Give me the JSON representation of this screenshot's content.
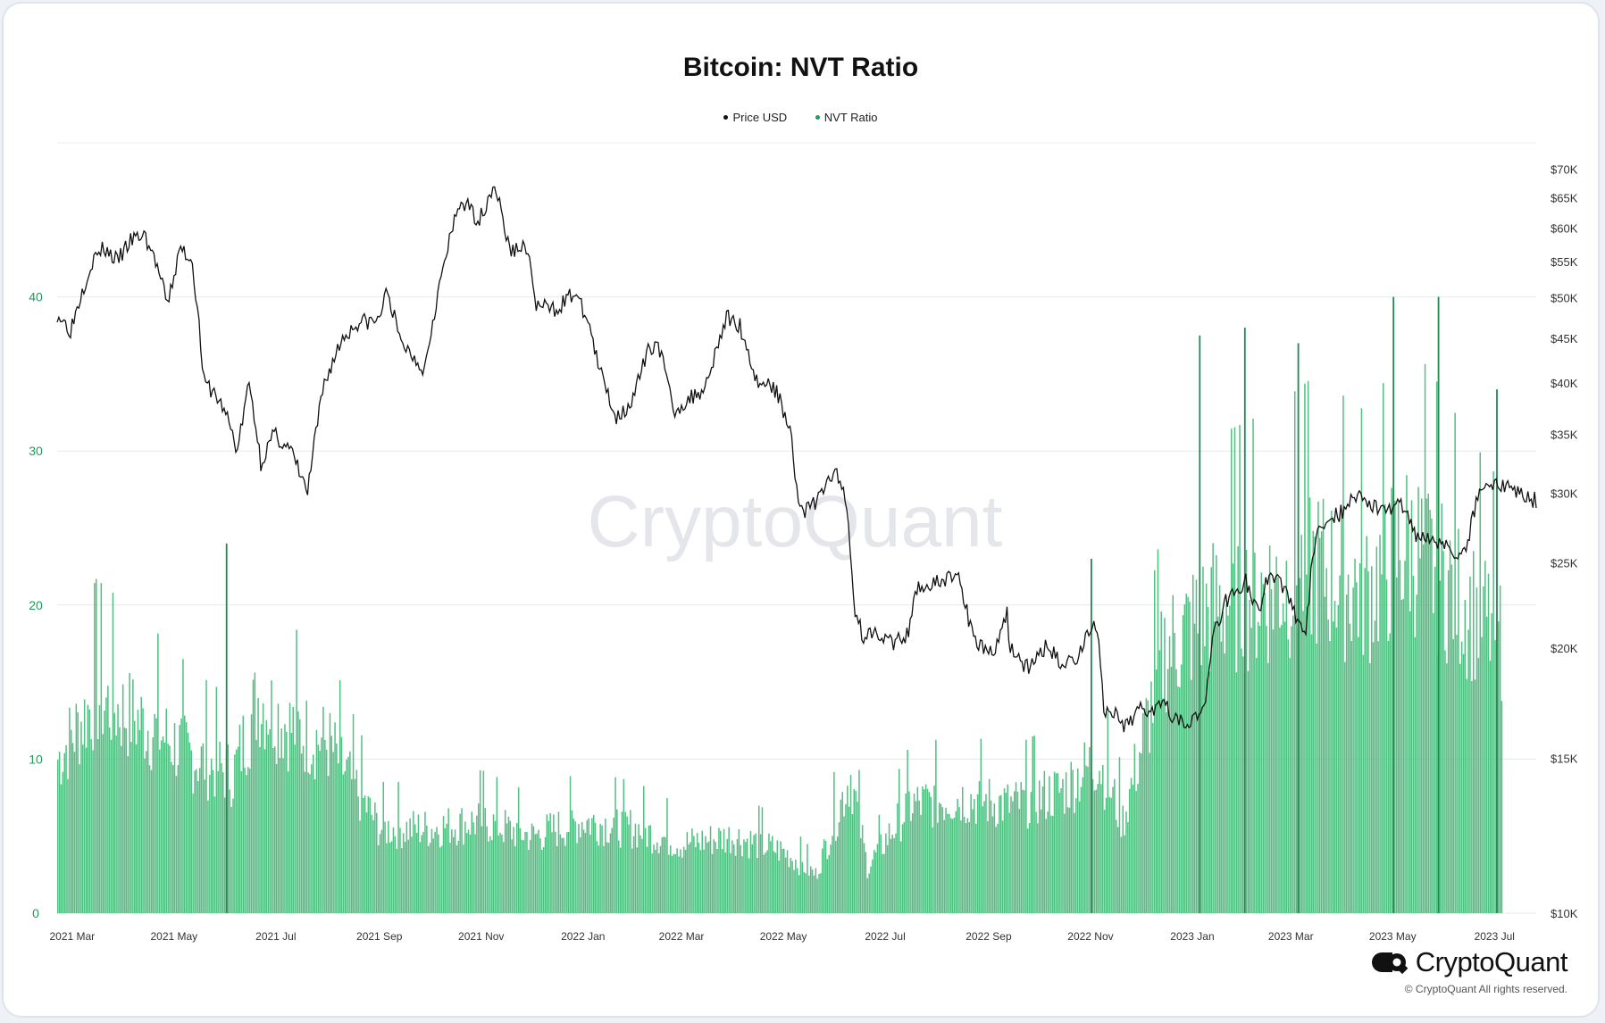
{
  "title": "Bitcoin: NVT Ratio",
  "legend": [
    {
      "label": "Price USD",
      "color": "#111111"
    },
    {
      "label": "NVT Ratio",
      "color": "#1f9d5c"
    }
  ],
  "watermark": "CryptoQuant",
  "brand": {
    "name": "CryptoQuant",
    "copyright": "© CryptoQuant All rights reserved."
  },
  "colors": {
    "bar": "#3db873",
    "bar_edge": "#1e8a4f",
    "line": "#111111",
    "left_axis": "#1f9d5c",
    "grid": "#e6e9ee"
  },
  "chart_data": {
    "type": "bar+line",
    "title": "Bitcoin: NVT Ratio",
    "x_ticks": [
      "2021 Mar",
      "2021 May",
      "2021 Jul",
      "2021 Sep",
      "2021 Nov",
      "2022 Jan",
      "2022 Mar",
      "2022 May",
      "2022 Jul",
      "2022 Sep",
      "2022 Nov",
      "2023 Jan",
      "2023 Mar",
      "2023 May",
      "2023 Jul"
    ],
    "left_axis": {
      "label": "",
      "ticks": [
        "0",
        "10",
        "20",
        "30",
        "40"
      ],
      "ylim": [
        0,
        50
      ]
    },
    "right_axis": {
      "label": "",
      "scale": "log",
      "ticks": [
        "$10K",
        "$15K",
        "$20K",
        "$25K",
        "$30K",
        "$35K",
        "$40K",
        "$45K",
        "$50K",
        "$55K",
        "$60K",
        "$65K",
        "$70K"
      ],
      "ylim": [
        10000,
        75000
      ]
    },
    "series": [
      {
        "name": "Price USD",
        "type": "line",
        "axis": "right",
        "x": [
          "2021-02-20",
          "2021-02-28",
          "2021-03-07",
          "2021-03-13",
          "2021-03-20",
          "2021-03-28",
          "2021-04-05",
          "2021-04-13",
          "2021-04-20",
          "2021-04-27",
          "2021-05-05",
          "2021-05-12",
          "2021-05-19",
          "2021-05-25",
          "2021-06-01",
          "2021-06-08",
          "2021-06-15",
          "2021-06-22",
          "2021-06-30",
          "2021-07-10",
          "2021-07-20",
          "2021-07-30",
          "2021-08-10",
          "2021-08-20",
          "2021-08-31",
          "2021-09-06",
          "2021-09-13",
          "2021-09-21",
          "2021-09-28",
          "2021-10-05",
          "2021-10-15",
          "2021-10-20",
          "2021-10-31",
          "2021-11-09",
          "2021-11-18",
          "2021-11-28",
          "2021-12-04",
          "2021-12-15",
          "2021-12-27",
          "2022-01-05",
          "2022-01-10",
          "2022-01-21",
          "2022-01-31",
          "2022-02-10",
          "2022-02-15",
          "2022-02-24",
          "2022-03-07",
          "2022-03-15",
          "2022-03-28",
          "2022-04-05",
          "2022-04-15",
          "2022-04-25",
          "2022-05-05",
          "2022-05-09",
          "2022-05-12",
          "2022-05-22",
          "2022-05-31",
          "2022-06-07",
          "2022-06-13",
          "2022-06-18",
          "2022-06-25",
          "2022-07-05",
          "2022-07-15",
          "2022-07-20",
          "2022-07-30",
          "2022-08-14",
          "2022-08-20",
          "2022-08-26",
          "2022-09-05",
          "2022-09-12",
          "2022-09-13",
          "2022-09-25",
          "2022-10-05",
          "2022-10-15",
          "2022-10-25",
          "2022-10-29",
          "2022-11-05",
          "2022-11-08",
          "2022-11-09",
          "2022-11-15",
          "2022-11-21",
          "2022-11-30",
          "2022-12-10",
          "2022-12-15",
          "2022-12-20",
          "2022-12-31",
          "2023-01-08",
          "2023-01-14",
          "2023-01-21",
          "2023-02-02",
          "2023-02-10",
          "2023-02-16",
          "2023-02-25",
          "2023-03-10",
          "2023-03-13",
          "2023-03-18",
          "2023-03-25",
          "2023-04-01",
          "2023-04-11",
          "2023-04-19",
          "2023-04-26",
          "2023-05-06",
          "2023-05-15",
          "2023-05-25",
          "2023-06-06",
          "2023-06-10",
          "2023-06-15",
          "2023-06-21",
          "2023-06-25",
          "2023-07-05",
          "2023-07-13",
          "2023-07-20",
          "2023-07-26"
        ],
        "values": [
          48000,
          46000,
          51000,
          55000,
          57000,
          55000,
          58000,
          59000,
          55000,
          49000,
          57000,
          55000,
          40000,
          39000,
          37000,
          33500,
          40000,
          32500,
          35000,
          33500,
          30000,
          40000,
          45000,
          47000,
          47000,
          51000,
          44800,
          43000,
          41500,
          49500,
          60000,
          64500,
          61300,
          67500,
          56500,
          57300,
          49000,
          48500,
          50700,
          46500,
          41800,
          36500,
          38400,
          44000,
          44500,
          37200,
          38500,
          39600,
          47500,
          46500,
          40200,
          39700,
          35800,
          30500,
          28500,
          29500,
          31800,
          30000,
          22100,
          20500,
          21100,
          20200,
          20700,
          23500,
          23600,
          24300,
          21500,
          20200,
          19800,
          22200,
          20200,
          18900,
          20100,
          19200,
          19600,
          20700,
          21200,
          18500,
          16700,
          16900,
          16100,
          17100,
          17100,
          17800,
          16700,
          16500,
          17000,
          20800,
          22700,
          23800,
          21800,
          24500,
          23400,
          20500,
          24300,
          27500,
          28300,
          28500,
          30200,
          28900,
          28700,
          29200,
          27000,
          26800,
          25700,
          25800,
          26300,
          30000,
          30800,
          30500,
          30400,
          29800,
          29400
        ]
      },
      {
        "name": "NVT Ratio",
        "type": "bar",
        "axis": "left",
        "x": [
          "2021-02-20",
          "2021-03-15",
          "2021-04-10",
          "2021-05-15",
          "2021-06-05",
          "2021-06-20",
          "2021-07-10",
          "2021-08-01",
          "2021-09-01",
          "2021-10-01",
          "2021-11-01",
          "2021-12-01",
          "2022-01-01",
          "2022-02-01",
          "2022-03-01",
          "2022-04-01",
          "2022-05-01",
          "2022-05-20",
          "2022-06-10",
          "2022-06-20",
          "2022-07-15",
          "2022-08-15",
          "2022-09-15",
          "2022-10-15",
          "2022-11-05",
          "2022-11-20",
          "2022-12-15",
          "2023-01-15",
          "2023-02-15",
          "2023-03-15",
          "2023-04-15",
          "2023-05-10",
          "2023-05-25",
          "2023-06-15",
          "2023-07-05"
        ],
        "values": [
          10.0,
          14.0,
          12.5,
          10.0,
          9.0,
          14.0,
          12.0,
          11.0,
          5.5,
          5.5,
          6.0,
          5.0,
          6.0,
          5.5,
          4.5,
          5.0,
          4.0,
          2.5,
          9.0,
          3.0,
          7.0,
          7.5,
          7.0,
          8.0,
          10.0,
          6.0,
          17.0,
          20.0,
          21.0,
          22.5,
          21.0,
          24.0,
          22.5,
          20.0,
          18.0
        ],
        "peaks": [
          {
            "x": "2021-06-01",
            "value": 24.0
          },
          {
            "x": "2022-11-01",
            "value": 23.0
          },
          {
            "x": "2023-01-05",
            "value": 37.5
          },
          {
            "x": "2023-02-01",
            "value": 38.0
          },
          {
            "x": "2023-03-05",
            "value": 37.0
          },
          {
            "x": "2023-05-01",
            "value": 40.0
          },
          {
            "x": "2023-05-28",
            "value": 40.0
          },
          {
            "x": "2023-07-02",
            "value": 34.0
          }
        ]
      }
    ]
  }
}
